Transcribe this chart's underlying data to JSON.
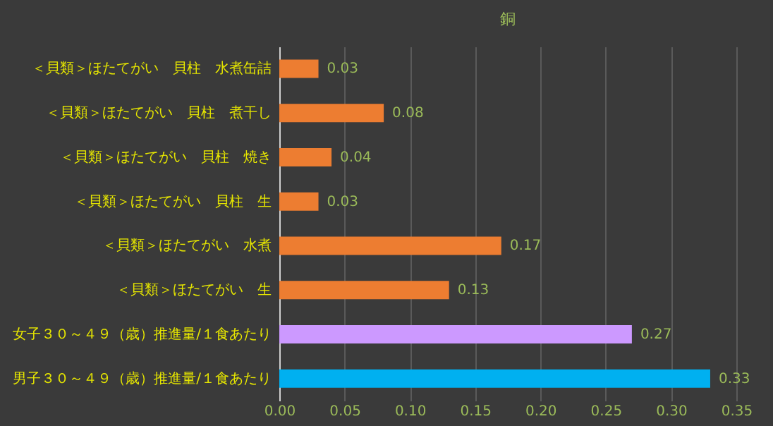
{
  "chart_data": {
    "type": "bar",
    "title": "銅",
    "orientation": "horizontal",
    "categories": [
      "＜貝類＞ほたてがい　貝柱　水煮缶詰",
      "＜貝類＞ほたてがい　貝柱　煮干し",
      "＜貝類＞ほたてがい　貝柱　焼き",
      "＜貝類＞ほたてがい　貝柱　生",
      "＜貝類＞ほたてがい　水煮",
      "＜貝類＞ほたてがい　生",
      "女子３０～４９（歳）推進量/１食あたり",
      "男子３０～４９（歳）推進量/１食あたり"
    ],
    "values": [
      0.03,
      0.08,
      0.04,
      0.03,
      0.17,
      0.13,
      0.27,
      0.33
    ],
    "colors": [
      "#ed7d31",
      "#ed7d31",
      "#ed7d31",
      "#ed7d31",
      "#ed7d31",
      "#ed7d31",
      "#cc99ff",
      "#00b0f0"
    ],
    "xlim": [
      0,
      0.35
    ],
    "xticks": [
      {
        "value": 0,
        "label": "0.00"
      },
      {
        "value": 0.05,
        "label": "0.05"
      },
      {
        "value": 0.1,
        "label": "0.10"
      },
      {
        "value": 0.15,
        "label": "0.15"
      },
      {
        "value": 0.2,
        "label": "0.20"
      },
      {
        "value": 0.25,
        "label": "0.25"
      },
      {
        "value": 0.3,
        "label": "0.30"
      },
      {
        "value": 0.35,
        "label": "0.35"
      }
    ],
    "grid": "x",
    "data_labels": true
  }
}
